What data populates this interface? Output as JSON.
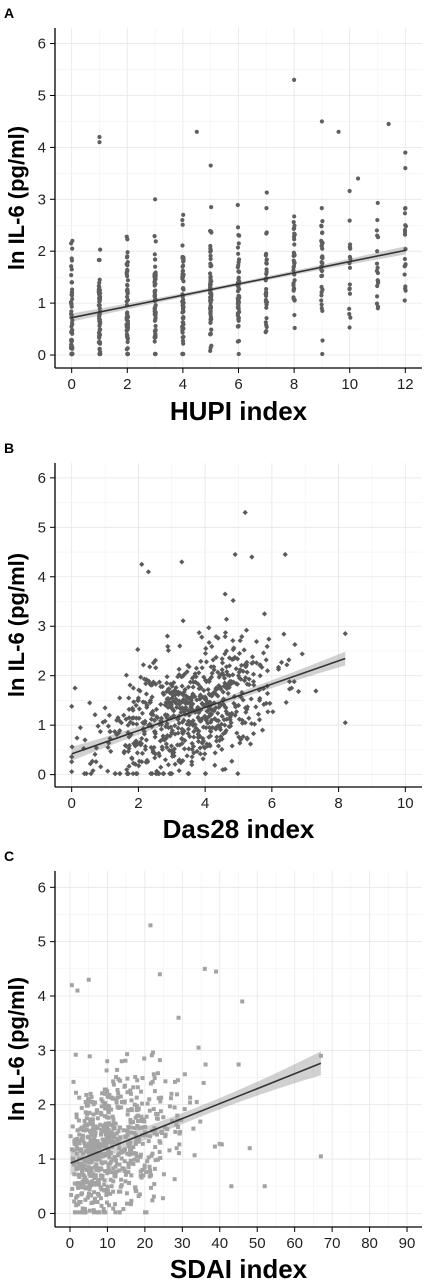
{
  "chart_data": [
    {
      "type": "scatter",
      "panel": "A",
      "xlabel": "HUPI index",
      "ylabel": "ln IL-6 (pg/ml)",
      "xlim": [
        -0.6,
        12.6
      ],
      "ylim": [
        -0.25,
        6.3
      ],
      "xticks": [
        0,
        2,
        4,
        6,
        8,
        10,
        12
      ],
      "yticks": [
        0,
        1,
        2,
        3,
        4,
        5,
        6
      ],
      "grid": true,
      "marker_color": "#5f5f5f",
      "marker_shape": "circle",
      "fit": {
        "intercept": 0.72,
        "slope": 0.108,
        "ci": 0.08
      },
      "series": [
        {
          "points": []
        }
      ]
    },
    {
      "type": "scatter",
      "panel": "B",
      "xlabel": "Das28 index",
      "ylabel": "ln IL-6 (pg/ml)",
      "xlim": [
        -0.5,
        10.5
      ],
      "ylim": [
        -0.25,
        6.3
      ],
      "xticks": [
        0,
        2,
        4,
        6,
        8,
        10
      ],
      "yticks": [
        0,
        1,
        2,
        3,
        4,
        5,
        6
      ],
      "grid": true,
      "marker_color": "#5a5a5a",
      "marker_shape": "diamond",
      "fit": {
        "intercept": 0.42,
        "slope": 0.235,
        "ci": 0.14
      },
      "series": [
        {
          "points": []
        }
      ]
    },
    {
      "type": "scatter",
      "panel": "C",
      "xlabel": "SDAI index",
      "ylabel": "ln IL-6 (pg/ml)",
      "xlim": [
        -4,
        94
      ],
      "ylim": [
        -0.25,
        6.3
      ],
      "xticks": [
        0,
        10,
        20,
        30,
        40,
        50,
        60,
        70,
        80,
        90
      ],
      "yticks": [
        0,
        1,
        2,
        3,
        4,
        5,
        6
      ],
      "grid": true,
      "marker_color": "#a3a3a3",
      "marker_shape": "square",
      "fit": {
        "intercept": 0.92,
        "slope": 0.0275,
        "ci": 0.22
      },
      "series": [
        {
          "points": []
        }
      ]
    }
  ]
}
